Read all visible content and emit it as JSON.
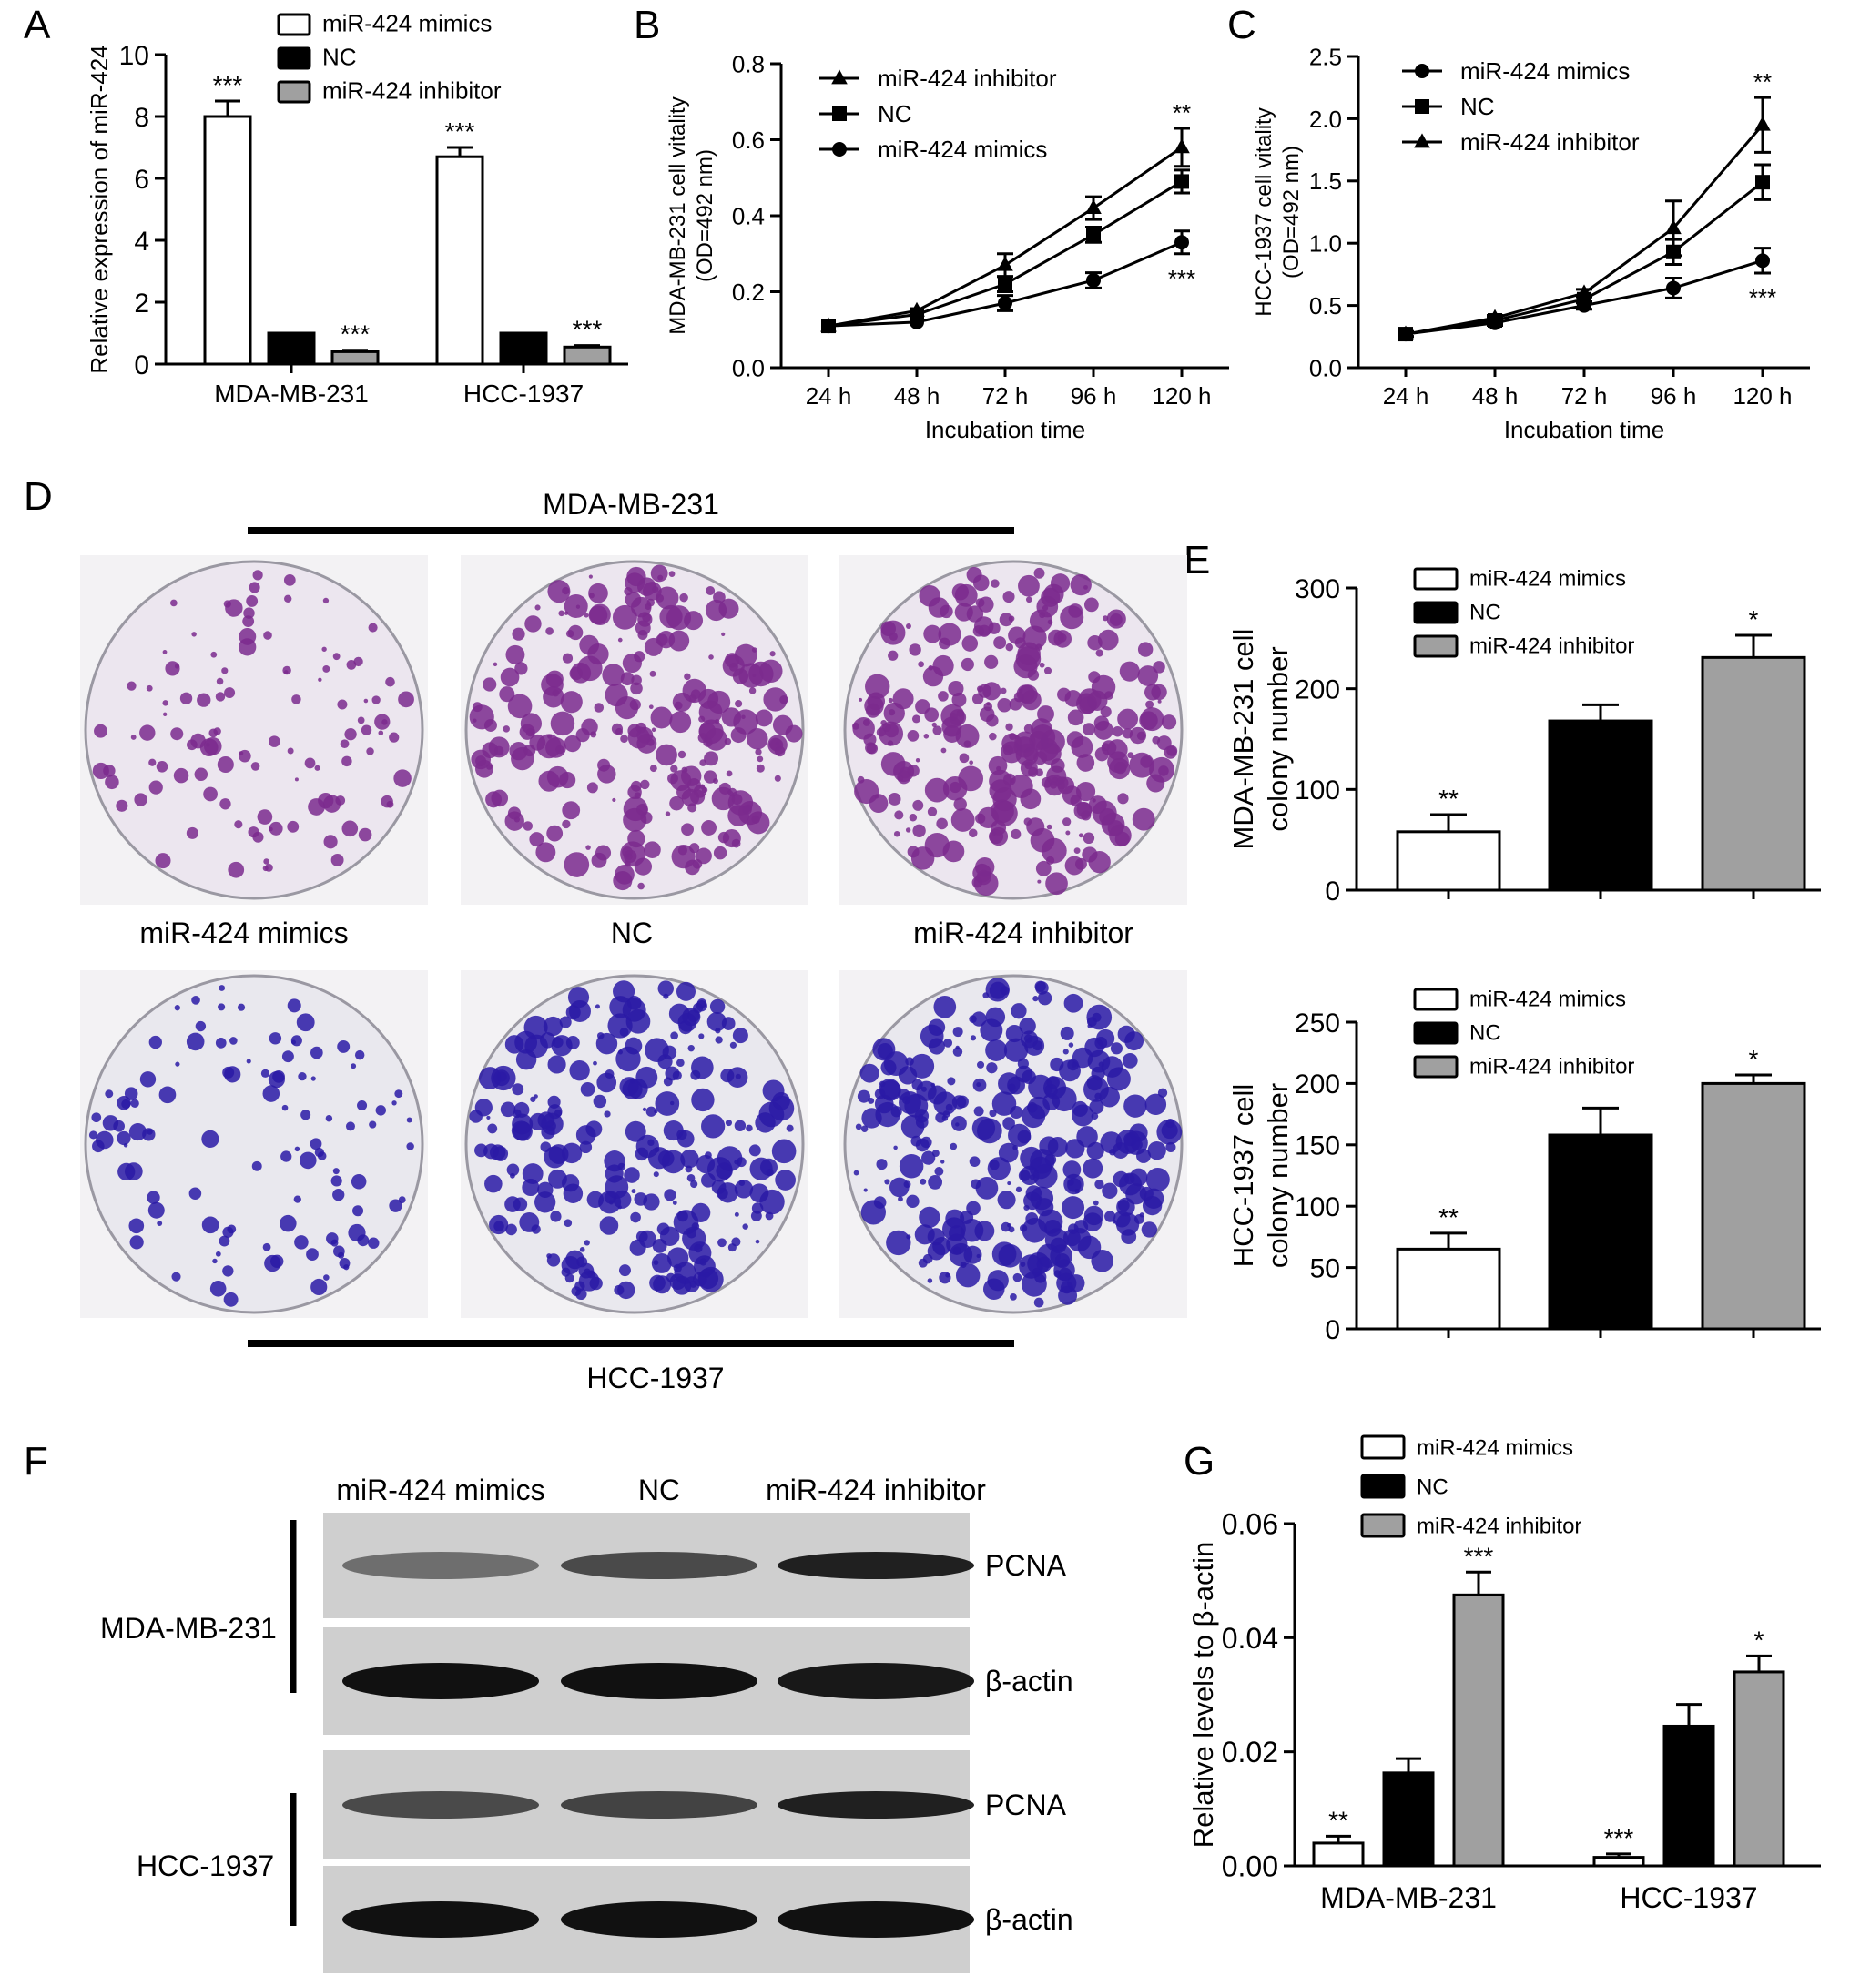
{
  "panel_letters": [
    "A",
    "B",
    "C",
    "D",
    "E",
    "F",
    "G"
  ],
  "colors": {
    "mimics": "#ffffff",
    "nc": "#000000",
    "inhibitor": "#a0a0a0",
    "axis": "#000000",
    "mda_colony": "#7b2a8e",
    "mda_dish_bg": "#ece6ef",
    "hcc_colony": "#2a1aa6",
    "hcc_dish_bg": "#e9e8ee",
    "blot_bg": "#cfcfcf",
    "band": "#111111"
  },
  "chart_data": [
    {
      "panel": "A",
      "type": "bar",
      "categories": [
        "MDA-MB-231",
        "HCC-1937"
      ],
      "series": [
        {
          "name": "miR-424 mimics",
          "values": [
            8.0,
            6.7
          ],
          "errors": [
            0.5,
            0.3
          ],
          "sig": [
            "***",
            "***"
          ]
        },
        {
          "name": "NC",
          "values": [
            1.0,
            1.0
          ],
          "errors": [
            0,
            0
          ],
          "sig": [
            "",
            ""
          ]
        },
        {
          "name": "miR-424 inhibitor",
          "values": [
            0.4,
            0.55
          ],
          "errors": [
            0.05,
            0.05
          ],
          "sig": [
            "***",
            "***"
          ]
        }
      ],
      "ylabel": "Relative expression of miR-424",
      "ylim": [
        0,
        10
      ],
      "yticks": [
        "0",
        "2",
        "4",
        "6",
        "8",
        "10"
      ],
      "legend": "top-right"
    },
    {
      "panel": "B",
      "type": "line",
      "x": [
        "24 h",
        "48 h",
        "72 h",
        "96 h",
        "120 h"
      ],
      "series": [
        {
          "name": "miR-424 inhibitor",
          "marker": "triangle",
          "values": [
            0.11,
            0.15,
            0.27,
            0.42,
            0.58
          ],
          "errors": [
            0.01,
            0.01,
            0.03,
            0.03,
            0.05
          ]
        },
        {
          "name": "NC",
          "marker": "square",
          "values": [
            0.11,
            0.14,
            0.22,
            0.35,
            0.49
          ],
          "errors": [
            0.01,
            0.01,
            0.02,
            0.02,
            0.03
          ]
        },
        {
          "name": "miR-424 mimics",
          "marker": "circle",
          "values": [
            0.11,
            0.12,
            0.17,
            0.23,
            0.33
          ],
          "errors": [
            0.01,
            0.01,
            0.02,
            0.02,
            0.03
          ]
        }
      ],
      "annotations": [
        "**",
        "***"
      ],
      "xlabel": "Incubation time",
      "ylabel_lines": [
        "MDA-MB-231 cell vitality",
        "(OD=492 nm)"
      ],
      "ylim": [
        0,
        0.8
      ],
      "yticks": [
        "0.0",
        "0.2",
        "0.4",
        "0.6",
        "0.8"
      ],
      "legend": "top-left"
    },
    {
      "panel": "C",
      "type": "line",
      "x": [
        "24 h",
        "48 h",
        "72 h",
        "96 h",
        "120 h"
      ],
      "series": [
        {
          "name": "miR-424 mimics",
          "marker": "circle",
          "values": [
            0.27,
            0.36,
            0.5,
            0.64,
            0.86
          ],
          "errors": [
            0.02,
            0.02,
            0.03,
            0.08,
            0.1
          ]
        },
        {
          "name": "NC",
          "marker": "square",
          "values": [
            0.27,
            0.38,
            0.55,
            0.93,
            1.49
          ],
          "errors": [
            0.02,
            0.02,
            0.03,
            0.1,
            0.14
          ]
        },
        {
          "name": "miR-424 inhibitor",
          "marker": "triangle",
          "values": [
            0.27,
            0.4,
            0.6,
            1.12,
            1.95
          ],
          "errors": [
            0.02,
            0.02,
            0.03,
            0.22,
            0.22
          ]
        }
      ],
      "annotations": [
        "**",
        "***"
      ],
      "xlabel": "Incubation time",
      "ylabel_lines": [
        "HCC-1937 cell vitality",
        "(OD=492 nm)"
      ],
      "ylim": [
        0,
        2.5
      ],
      "yticks": [
        "0.0",
        "0.5",
        "1.0",
        "1.5",
        "2.0",
        "2.5"
      ],
      "legend": "top-left"
    },
    {
      "panel": "E-top",
      "type": "bar",
      "categories": [
        "miR-424 mimics",
        "NC",
        "miR-424 inhibitor"
      ],
      "values": [
        58,
        168,
        231
      ],
      "errors": [
        17,
        16,
        22
      ],
      "sig": [
        "**",
        "",
        "*"
      ],
      "ylabel_lines": [
        "MDA-MB-231 cell",
        "colony number"
      ],
      "ylim": [
        0,
        300
      ],
      "yticks": [
        "0",
        "100",
        "200",
        "300"
      ],
      "legend": "top"
    },
    {
      "panel": "E-bottom",
      "type": "bar",
      "categories": [
        "miR-424 mimics",
        "NC",
        "miR-424 inhibitor"
      ],
      "values": [
        65,
        158,
        200
      ],
      "errors": [
        13,
        22,
        7
      ],
      "sig": [
        "**",
        "",
        "*"
      ],
      "ylabel_lines": [
        "HCC-1937 cell",
        "colony number"
      ],
      "ylim": [
        0,
        250
      ],
      "yticks": [
        "0",
        "50",
        "100",
        "150",
        "200",
        "250"
      ],
      "legend": "top"
    },
    {
      "panel": "G",
      "type": "bar",
      "categories": [
        "MDA-MB-231",
        "HCC-1937"
      ],
      "series": [
        {
          "name": "miR-424 mimics",
          "values": [
            0.004,
            0.0015
          ],
          "errors": [
            0.0012,
            0.0006
          ],
          "sig": [
            "**",
            "***"
          ]
        },
        {
          "name": "NC",
          "values": [
            0.0163,
            0.0245
          ],
          "errors": [
            0.0025,
            0.0038
          ],
          "sig": [
            "",
            ""
          ]
        },
        {
          "name": "miR-424 inhibitor",
          "values": [
            0.0475,
            0.034
          ],
          "errors": [
            0.004,
            0.0028
          ],
          "sig": [
            "***",
            "*"
          ]
        }
      ],
      "ylabel": "Relative levels to β-actin",
      "ylim": [
        0,
        0.06
      ],
      "yticks": [
        "0.00",
        "0.02",
        "0.04",
        "0.06"
      ],
      "legend": "top"
    }
  ],
  "panel_d": {
    "top_label": "MDA-MB-231",
    "bottom_label": "HCC-1937",
    "group_labels": [
      "miR-424 mimics",
      "NC",
      "miR-424 inhibitor"
    ],
    "colony_density": [
      110,
      260,
      300
    ]
  },
  "panel_f": {
    "lane_labels": [
      "miR-424 mimics",
      "NC",
      "miR-424 inhibitor"
    ],
    "cell_lines": [
      "MDA-MB-231",
      "HCC-1937"
    ],
    "blots": [
      {
        "label": "PCNA",
        "intensities": [
          0.35,
          0.6,
          0.9
        ]
      },
      {
        "label": "β-actin",
        "intensities": [
          1.0,
          1.0,
          0.95
        ]
      },
      {
        "label": "PCNA",
        "intensities": [
          0.6,
          0.65,
          0.9
        ]
      },
      {
        "label": "β-actin",
        "intensities": [
          1.0,
          1.0,
          1.0
        ]
      }
    ]
  }
}
